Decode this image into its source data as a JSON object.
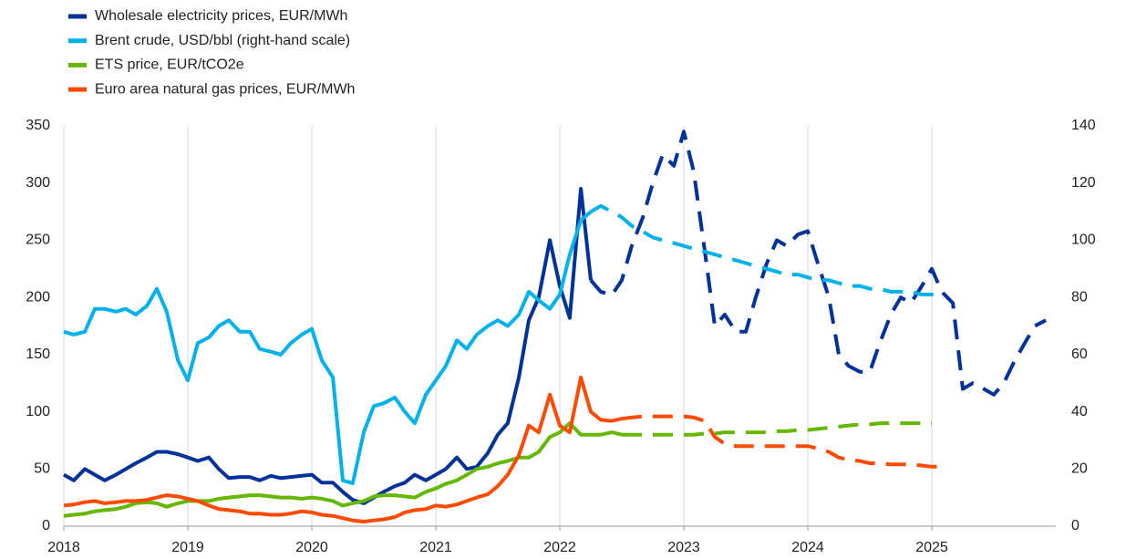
{
  "chart_data": {
    "type": "line",
    "x": [
      2018,
      2018.08,
      2018.17,
      2018.25,
      2018.33,
      2018.42,
      2018.5,
      2018.58,
      2018.67,
      2018.75,
      2018.83,
      2018.92,
      2019,
      2019.08,
      2019.17,
      2019.25,
      2019.33,
      2019.42,
      2019.5,
      2019.58,
      2019.67,
      2019.75,
      2019.83,
      2019.92,
      2020,
      2020.08,
      2020.17,
      2020.25,
      2020.33,
      2020.42,
      2020.5,
      2020.58,
      2020.67,
      2020.75,
      2020.83,
      2020.92,
      2021,
      2021.08,
      2021.17,
      2021.25,
      2021.33,
      2021.42,
      2021.5,
      2021.58,
      2021.67,
      2021.75,
      2021.83,
      2021.92,
      2022,
      2022.08,
      2022.17,
      2022.25,
      2022.33,
      2022.42,
      2022.5,
      2022.58,
      2022.67,
      2022.75,
      2022.83,
      2022.92,
      2023,
      2023.08,
      2023.17,
      2023.25,
      2023.33,
      2023.42,
      2023.5,
      2023.58,
      2023.67,
      2023.75,
      2023.83,
      2023.92,
      2024,
      2024.08,
      2024.17,
      2024.25,
      2024.33,
      2024.42,
      2024.5,
      2024.58,
      2024.67,
      2024.75,
      2024.83,
      2024.92,
      2025,
      2025.08,
      2025.17,
      2025.25,
      2025.33,
      2025.42,
      2025.5,
      2025.58,
      2025.67,
      2025.75,
      2025.83,
      2025.92
    ],
    "series": [
      {
        "name": "Wholesale electricity prices, EUR/MWh",
        "color": "#003299",
        "dashed_from": 2022.25,
        "values": [
          45,
          40,
          50,
          45,
          40,
          45,
          50,
          55,
          60,
          65,
          65,
          63,
          60,
          57,
          60,
          50,
          42,
          43,
          43,
          40,
          44,
          42,
          43,
          44,
          45,
          38,
          38,
          30,
          23,
          20,
          25,
          30,
          35,
          38,
          45,
          40,
          45,
          50,
          60,
          50,
          52,
          64,
          80,
          90,
          130,
          180,
          200,
          250,
          210,
          182,
          295,
          215,
          205,
          202,
          215,
          245,
          270,
          300,
          325,
          315,
          345,
          310,
          240,
          175,
          185,
          170,
          170,
          200,
          230,
          250,
          245,
          255,
          258,
          230,
          200,
          150,
          140,
          135,
          135,
          160,
          185,
          200,
          195,
          210,
          225,
          205,
          195,
          120,
          125,
          120,
          115,
          125,
          145,
          160,
          175,
          180
        ]
      },
      {
        "name": "Brent crude, USD/bbl (right-hand scale)",
        "color": "#00b1ea",
        "axis": "y2",
        "dashed_from": 2022.25,
        "values": [
          68,
          67,
          68,
          76,
          76,
          75,
          76,
          74,
          77,
          83,
          75,
          58,
          51,
          64,
          66,
          70,
          72,
          68,
          68,
          62,
          61,
          60,
          64,
          67,
          69,
          58,
          52,
          16,
          15,
          33,
          42,
          43,
          45,
          40,
          36,
          46,
          51,
          56,
          65,
          62,
          67,
          70,
          72,
          70,
          74,
          82,
          79,
          76,
          81,
          95,
          107,
          110,
          112,
          110,
          108,
          105,
          103,
          101,
          100,
          99,
          98,
          97,
          96,
          95,
          94,
          93,
          92,
          91,
          90,
          89,
          88,
          88,
          87,
          86,
          86,
          85,
          84,
          84,
          83,
          83,
          82,
          82,
          82,
          81,
          81,
          80,
          null,
          null,
          null,
          null,
          null,
          null,
          null,
          null,
          null,
          null
        ]
      },
      {
        "name": "ETS price, EUR/tCO2e",
        "color": "#65b800",
        "dashed_from": 2022.5,
        "values": [
          9,
          10,
          11,
          13,
          14,
          15,
          17,
          20,
          21,
          20,
          17,
          20,
          22,
          22,
          22,
          24,
          25,
          26,
          27,
          27,
          26,
          25,
          25,
          24,
          25,
          24,
          22,
          18,
          20,
          22,
          26,
          27,
          27,
          26,
          25,
          30,
          33,
          37,
          40,
          45,
          50,
          52,
          55,
          57,
          60,
          60,
          65,
          78,
          82,
          90,
          80,
          80,
          80,
          82,
          80,
          80,
          80,
          80,
          80,
          80,
          80,
          80,
          81,
          81,
          82,
          82,
          82,
          82,
          82,
          83,
          83,
          84,
          84,
          85,
          86,
          87,
          88,
          89,
          89,
          90,
          90,
          90,
          90,
          90,
          90,
          null,
          null,
          null,
          null,
          null,
          null,
          null,
          null,
          null,
          null,
          null
        ]
      },
      {
        "name": "Euro area natural gas prices, EUR/MWh",
        "color": "#ff4b00",
        "dashed_from": 2022.5,
        "values": [
          18,
          19,
          21,
          22,
          20,
          21,
          22,
          22,
          23,
          25,
          27,
          26,
          24,
          22,
          18,
          15,
          14,
          13,
          11,
          11,
          10,
          10,
          11,
          13,
          12,
          10,
          9,
          7,
          5,
          4,
          5,
          6,
          8,
          12,
          14,
          15,
          18,
          17,
          19,
          22,
          25,
          28,
          35,
          45,
          62,
          88,
          82,
          115,
          88,
          82,
          130,
          100,
          93,
          92,
          94,
          95,
          96,
          96,
          96,
          96,
          96,
          95,
          92,
          78,
          72,
          70,
          70,
          70,
          70,
          70,
          70,
          70,
          70,
          68,
          65,
          60,
          58,
          57,
          55,
          55,
          54,
          54,
          54,
          53,
          52,
          52,
          null,
          null,
          null,
          null,
          null,
          null,
          null,
          null,
          null,
          null
        ]
      }
    ],
    "xlim": [
      2018,
      2026
    ],
    "xticks": [
      2018,
      2019,
      2020,
      2021,
      2022,
      2023,
      2024,
      2025
    ],
    "ylim": [
      0,
      350
    ],
    "yticks": [
      0,
      50,
      100,
      150,
      200,
      250,
      300,
      350
    ],
    "y2lim": [
      0,
      140
    ],
    "y2ticks": [
      0,
      20,
      40,
      60,
      80,
      100,
      120,
      140
    ],
    "grid": "x"
  }
}
